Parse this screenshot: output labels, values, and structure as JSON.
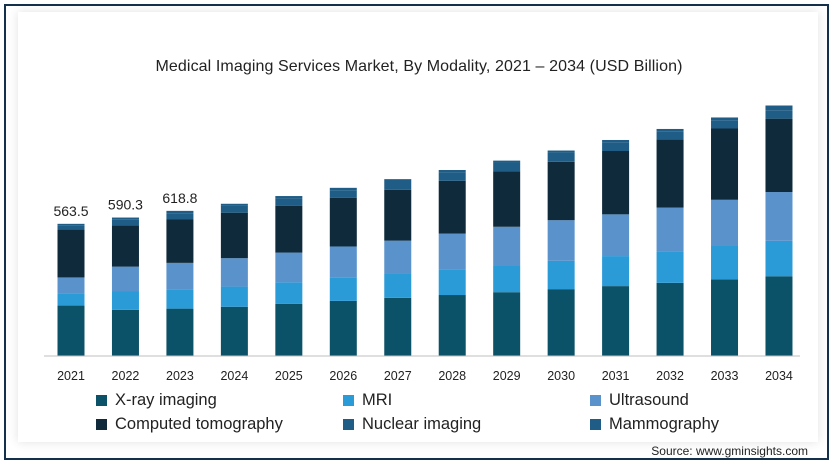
{
  "chart_data": {
    "type": "bar",
    "stacked": true,
    "title": "Medical Imaging Services Market, By Modality, 2021 – 2034 (USD Billion)",
    "xlabel": "",
    "ylabel": "",
    "categories": [
      "2021",
      "2022",
      "2023",
      "2024",
      "2025",
      "2026",
      "2027",
      "2028",
      "2029",
      "2030",
      "2031",
      "2032",
      "2033",
      "2034"
    ],
    "total_labels": [
      "563.5",
      "590.3",
      "618.8",
      "",
      "",
      "",
      "",
      "",
      "",
      "",
      "",
      "",
      "",
      ""
    ],
    "totals": [
      563.5,
      590.3,
      618.8,
      649,
      682,
      717,
      754,
      793,
      833,
      876,
      921,
      968,
      1017,
      1068
    ],
    "series": [
      {
        "name": "X-ray imaging",
        "color": "#0b5167",
        "values": [
          215,
          197,
          202,
          210,
          222,
          235,
          248,
          260,
          272,
          285,
          298,
          312,
          326,
          340
        ]
      },
      {
        "name": "MRI",
        "color": "#2b9bd8",
        "values": [
          52,
          78,
          81,
          86,
          92,
          98,
          104,
          107,
          114,
          121,
          128,
          135,
          143,
          151
        ]
      },
      {
        "name": "Ultrasound",
        "color": "#5a93cc",
        "values": [
          68,
          106,
          114,
          121,
          127,
          134,
          140,
          155,
          165,
          173,
          178,
          186,
          197,
          208
        ]
      },
      {
        "name": "Computed tomography",
        "color": "#0e2a3b",
        "values": [
          204,
          176,
          185,
          194,
          200,
          207,
          217,
          225,
          237,
          249,
          270,
          291,
          304,
          313
        ]
      },
      {
        "name": "Nuclear imaging",
        "color": "#1f5d86",
        "values": [
          16,
          26,
          27,
          29,
          31,
          33,
          35,
          36,
          35,
          38,
          37,
          34,
          33,
          36
        ]
      },
      {
        "name": "Mammography",
        "color": "#1f5d86",
        "values": [
          8.5,
          7.3,
          9.8,
          9,
          10,
          10,
          10,
          10,
          10,
          10,
          10,
          10,
          14,
          20
        ]
      }
    ],
    "ylim": [
      0,
      1100
    ],
    "y_axis_visible": false,
    "grid": false,
    "legend_position": "bottom"
  },
  "source": "Source: www.gminsights.com"
}
